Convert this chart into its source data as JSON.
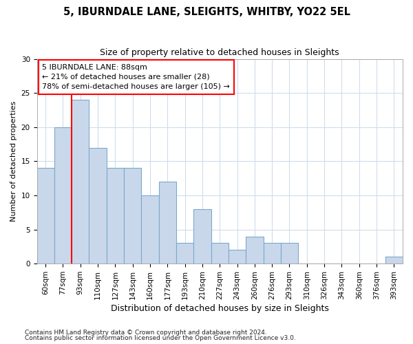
{
  "title": "5, IBURNDALE LANE, SLEIGHTS, WHITBY, YO22 5EL",
  "subtitle": "Size of property relative to detached houses in Sleights",
  "xlabel": "Distribution of detached houses by size in Sleights",
  "ylabel": "Number of detached properties",
  "categories": [
    "60sqm",
    "77sqm",
    "93sqm",
    "110sqm",
    "127sqm",
    "143sqm",
    "160sqm",
    "177sqm",
    "193sqm",
    "210sqm",
    "227sqm",
    "243sqm",
    "260sqm",
    "276sqm",
    "293sqm",
    "310sqm",
    "326sqm",
    "343sqm",
    "360sqm",
    "376sqm",
    "393sqm"
  ],
  "values": [
    14,
    20,
    24,
    17,
    14,
    14,
    10,
    12,
    3,
    8,
    3,
    2,
    4,
    3,
    3,
    0,
    0,
    0,
    0,
    0,
    1
  ],
  "bar_color": "#c8d8ea",
  "bar_edge_color": "#7ba8cc",
  "ylim": [
    0,
    30
  ],
  "yticks": [
    0,
    5,
    10,
    15,
    20,
    25,
    30
  ],
  "red_line_index": 2,
  "annotation_title": "5 IBURNDALE LANE: 88sqm",
  "annotation_line1": "← 21% of detached houses are smaller (28)",
  "annotation_line2": "78% of semi-detached houses are larger (105) →",
  "footnote1": "Contains HM Land Registry data © Crown copyright and database right 2024.",
  "footnote2": "Contains public sector information licensed under the Open Government Licence v3.0.",
  "bg_color": "#ffffff",
  "plot_bg_color": "#ffffff",
  "grid_color": "#d0dcec",
  "title_fontsize": 10.5,
  "subtitle_fontsize": 9,
  "ylabel_fontsize": 8,
  "xlabel_fontsize": 9,
  "tick_fontsize": 7.5,
  "annot_fontsize": 8,
  "footnote_fontsize": 6.5
}
